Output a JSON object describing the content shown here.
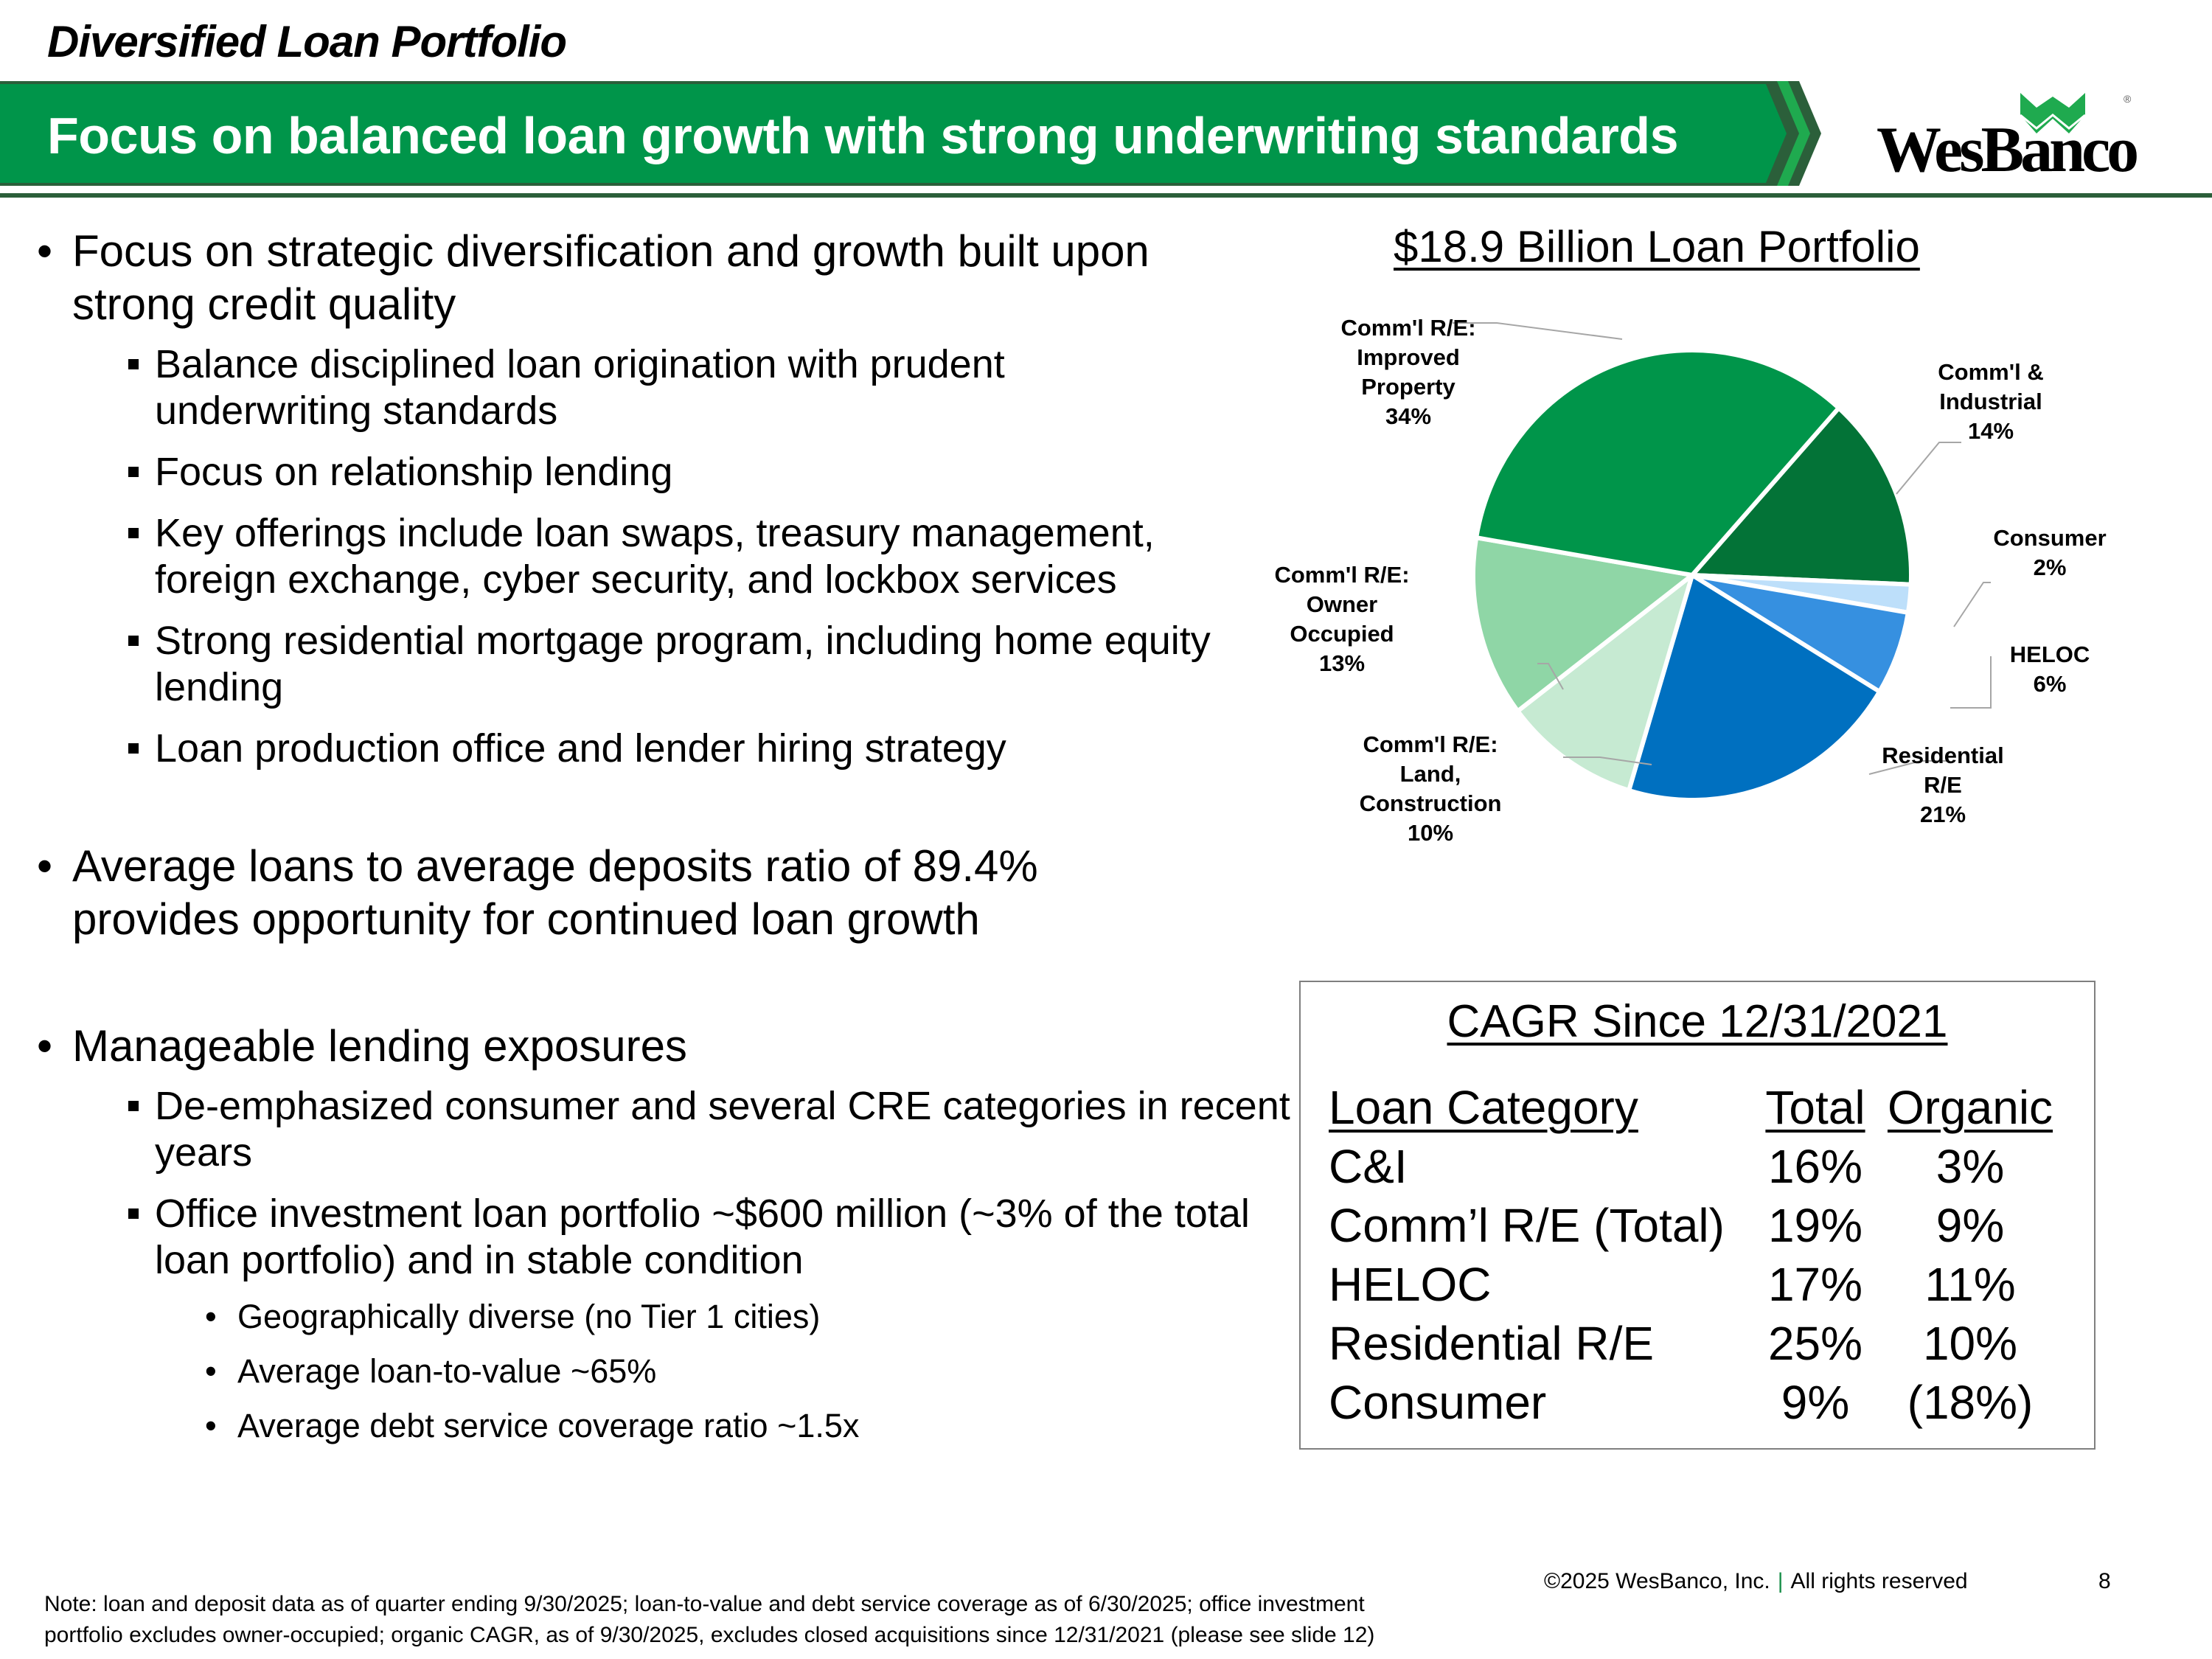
{
  "header": {
    "section_title": "Diversified Loan Portfolio",
    "banner_title": "Focus on balanced loan growth with strong underwriting standards",
    "logo_text": "WesBanco",
    "logo_registered": "®",
    "brand_color": "#00954A",
    "rule_color": "#2B5F3A"
  },
  "bullets": [
    {
      "text": "Focus on strategic diversification and growth built upon strong credit quality",
      "sub": [
        "Balance disciplined loan origination with prudent underwriting standards",
        "Focus on relationship lending",
        "Key offerings include loan swaps, treasury management, foreign exchange, cyber security, and lockbox services",
        "Strong residential mortgage program, including home equity lending",
        "Loan production office and lender hiring strategy"
      ]
    },
    {
      "text": "Average loans to average deposits ratio of 89.4% provides opportunity for continued loan growth"
    },
    {
      "text": "Manageable lending exposures",
      "sub": [
        "De-emphasized consumer and several CRE categories in recent years",
        "Office investment loan portfolio ~$600 million (~3% of the total loan portfolio) and in stable condition"
      ],
      "subsub": [
        "Geographically diverse (no Tier 1 cities)",
        "Average loan-to-value ~65%",
        "Average debt service coverage ratio ~1.5x"
      ]
    }
  ],
  "chart_data": [
    {
      "type": "pie",
      "title": "$18.9 Billion Loan Portfolio",
      "categories": [
        "Comm'l & Industrial",
        "Consumer",
        "HELOC",
        "Residential R/E",
        "Comm'l R/E: Land, Construction",
        "Comm'l R/E: Owner Occupied",
        "Comm'l R/E: Improved Property"
      ],
      "values": [
        14,
        2,
        6,
        21,
        10,
        13,
        34
      ],
      "colors": [
        "#037337",
        "#BDDFFA",
        "#3690E0",
        "#0070C0",
        "#C6EAD2",
        "#8FD6A6",
        "#00954A"
      ],
      "labels": [
        {
          "lines": [
            "Comm'l &",
            "Industrial",
            "14%"
          ]
        },
        {
          "lines": [
            "Consumer",
            "2%"
          ]
        },
        {
          "lines": [
            "HELOC",
            "6%"
          ]
        },
        {
          "lines": [
            "Residential",
            "R/E",
            "21%"
          ]
        },
        {
          "lines": [
            "Comm'l R/E:",
            "Land,",
            "Construction",
            "10%"
          ]
        },
        {
          "lines": [
            "Comm'l R/E:",
            "Owner",
            "Occupied",
            "13%"
          ]
        },
        {
          "lines": [
            "Comm'l R/E:",
            "Improved",
            "Property",
            "34%"
          ]
        }
      ],
      "units": "%",
      "legend": "none (data labels)",
      "start_angle_deg": 42
    },
    {
      "type": "table",
      "title": "CAGR Since 12/31/2021",
      "columns": [
        "Loan Category",
        "Total",
        "Organic"
      ],
      "rows": [
        [
          "C&I",
          "16%",
          "3%"
        ],
        [
          "Comm’l R/E (Total)",
          "19%",
          "9%"
        ],
        [
          "HELOC",
          "17%",
          "11%"
        ],
        [
          "Residential R/E",
          "25%",
          "10%"
        ],
        [
          "Consumer",
          "9%",
          "(18%)"
        ]
      ]
    }
  ],
  "footer": {
    "note_line1": "Note: loan and deposit data as of quarter ending 9/30/2025; loan-to-value and debt service coverage as of 6/30/2025; office investment",
    "note_line2": "portfolio excludes owner-occupied; organic CAGR, as of 9/30/2025, excludes closed acquisitions since 12/31/2021 (please see slide 12)",
    "copyright": "©2025 WesBanco, Inc.",
    "separator": "|",
    "rights": "All rights reserved",
    "page_number": "8"
  }
}
